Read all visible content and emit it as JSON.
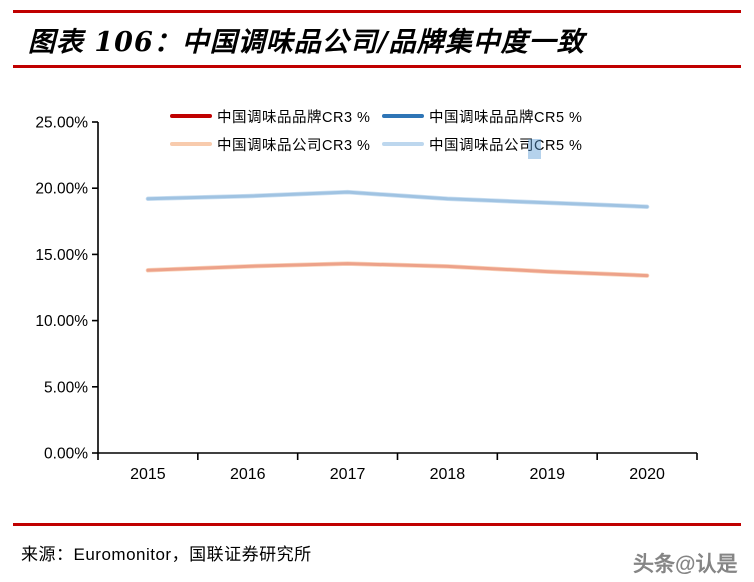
{
  "header": {
    "title": "图表 106：中国调味品公司/品牌集中度一致"
  },
  "chart_data": {
    "type": "line",
    "title": "中国调味品公司/品牌集中度一致",
    "categories": [
      "2015",
      "2016",
      "2017",
      "2018",
      "2019",
      "2020"
    ],
    "series": [
      {
        "name": "中国调味品品牌CR3 %",
        "color": "#C00000",
        "values": [
          13.8,
          14.1,
          14.3,
          14.1,
          13.7,
          13.4
        ]
      },
      {
        "name": "中国调味品品牌CR5 %",
        "color": "#2E75B6",
        "values": [
          19.2,
          19.4,
          19.7,
          19.2,
          18.9,
          18.6
        ]
      },
      {
        "name": "中国调味品公司CR3 %",
        "color": "#F8CBAD",
        "values": [
          13.8,
          14.1,
          14.3,
          14.1,
          13.7,
          13.4
        ]
      },
      {
        "name": "中国调味品公司CR5 %",
        "color": "#BDD7EE",
        "values": [
          19.2,
          19.4,
          19.7,
          19.2,
          18.9,
          18.6
        ]
      }
    ],
    "ylim": [
      0,
      25
    ],
    "y_tick_labels": [
      "0.00%",
      "5.00%",
      "10.00%",
      "15.00%",
      "20.00%",
      "25.00%"
    ],
    "xlabel": "",
    "ylabel": "",
    "grid": false,
    "legend_position": "top"
  },
  "footer": {
    "source": "来源：Euromonitor，国联证券研究所",
    "watermark": "头条@认是"
  },
  "colors": {
    "accent_rule": "#C00000",
    "axis": "#000000",
    "selection_highlight": "#5B9BD5"
  }
}
